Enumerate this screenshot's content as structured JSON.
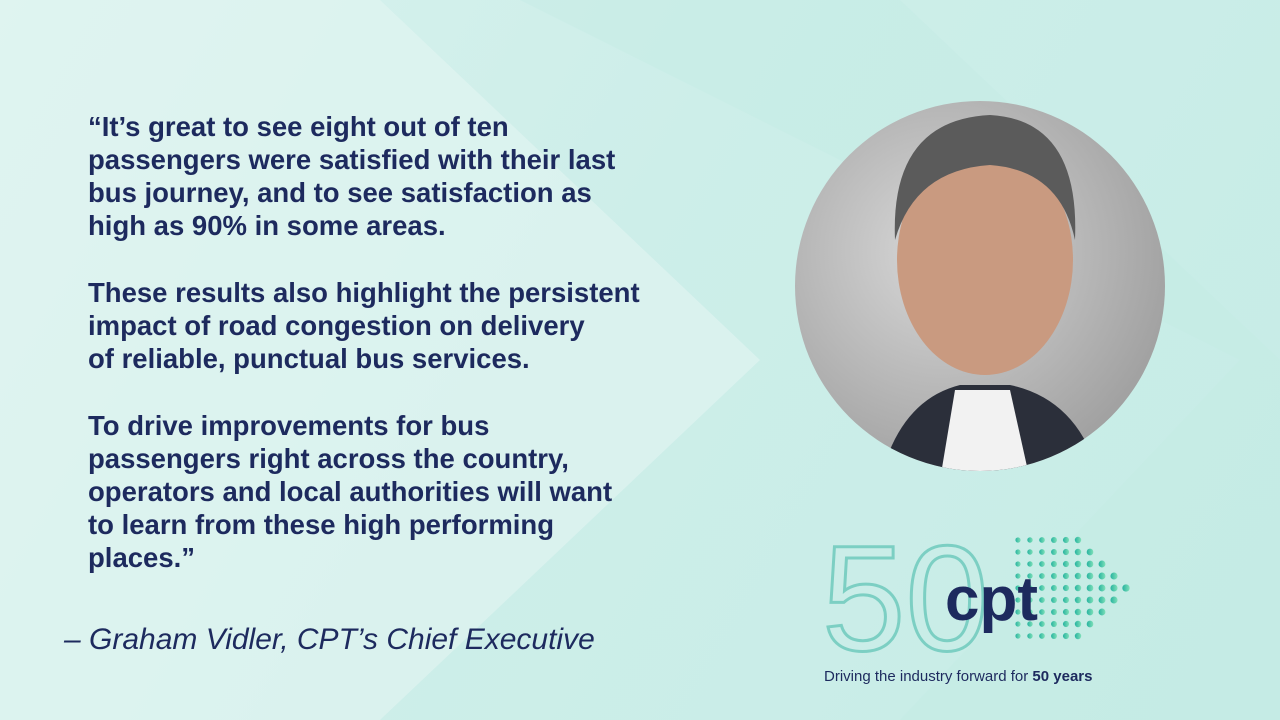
{
  "quote": {
    "paragraphs": [
      [
        "“It’s great to see eight out of ten",
        "passengers were satisfied with their last",
        "bus journey, and to see satisfaction as",
        "high as 90% in some areas."
      ],
      [
        "These results also highlight the persistent",
        "impact of road congestion on delivery",
        "of reliable, punctual bus services."
      ],
      [
        "To drive improvements for bus",
        "passengers right across the country,",
        "operators and local authorities will want",
        "to learn from these high performing",
        "places.”"
      ]
    ],
    "attribution": "– Graham Vidler, CPT’s Chief Executive"
  },
  "logo": {
    "number": "50",
    "wordmark": "cpt",
    "tagline": "Driving the industry forward for ",
    "tagline_bold": "50 years"
  }
}
